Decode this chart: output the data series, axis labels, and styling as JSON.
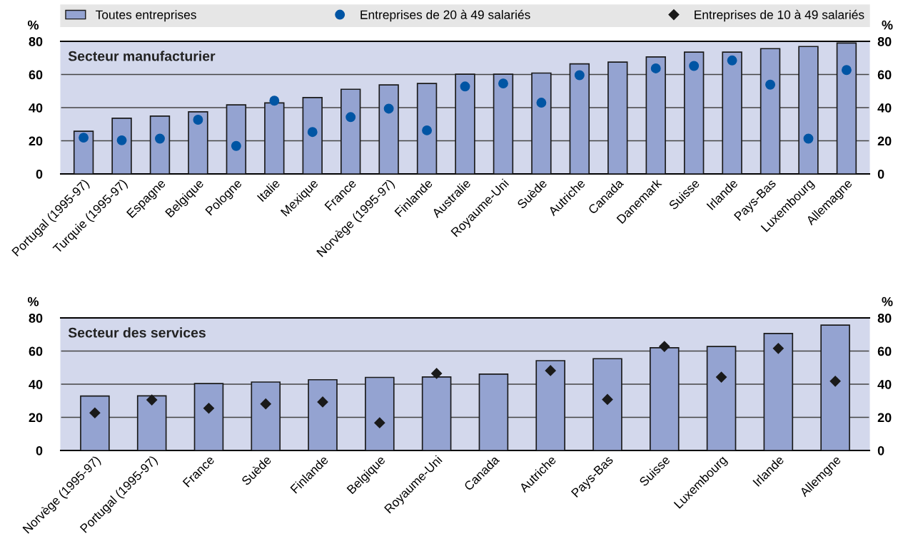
{
  "chart_data": [
    {
      "type": "bar",
      "title": "Secteur manufacturier",
      "annotations": [
        "%",
        "%"
      ],
      "legend": "top",
      "grid": "y",
      "categories": [
        "Portugal (1995-97)",
        "Turquie (1995-97)",
        "Espagne",
        "Belgique",
        "Pologne",
        "Italie",
        "Mexique",
        "France",
        "Norvège (1995-97)",
        "Finlande",
        "Australie",
        "Royaume-Uni",
        "Suède",
        "Autriche",
        "Canada",
        "Danemark",
        "Suisse",
        "Irlande",
        "Pays-Bas",
        "Luxembourg",
        "Allemagne"
      ],
      "series": [
        {
          "name": "Toutes entreprises",
          "color": "#94a3d1",
          "values": [
            25.8,
            33.6,
            34.9,
            37.5,
            41.7,
            42.9,
            46.1,
            51.1,
            53.7,
            54.6,
            60.2,
            60.2,
            60.9,
            66.4,
            67.5,
            70.6,
            73.5,
            73.5,
            75.6,
            76.9,
            79.0
          ]
        },
        {
          "name": "Entreprises de 20 à 49 salariés",
          "type": "scatter",
          "marker": "circle",
          "color": "#0055a4",
          "values": [
            21.9,
            20.3,
            21.3,
            32.7,
            16.9,
            44.2,
            25.3,
            34.3,
            39.4,
            26.3,
            52.8,
            54.6,
            43.0,
            59.6,
            null,
            63.7,
            65.2,
            68.5,
            53.9,
            21.3,
            62.7
          ]
        }
      ],
      "ylim": [
        0,
        80
      ],
      "yticks": [
        0,
        20,
        40,
        60,
        80
      ],
      "y2lim": [
        0,
        80
      ],
      "y2ticks": [
        0,
        20,
        40,
        60,
        80
      ]
    },
    {
      "type": "bar",
      "title": "Secteur des services",
      "annotations": [
        "%",
        "%"
      ],
      "grid": "y",
      "categories": [
        "Norvège (1995-97)",
        "Portugal (1995-97)",
        "France",
        "Suède",
        "Finlande",
        "Belgique",
        "Royaume-Uni",
        "Canada",
        "Autriche",
        "Pays-Bas",
        "Suisse",
        "Luxembourg",
        "Irlande",
        "Allemgne"
      ],
      "series": [
        {
          "name": "Toutes entreprises",
          "color": "#94a3d1",
          "values": [
            32.9,
            33.0,
            40.4,
            41.3,
            42.7,
            44.1,
            44.4,
            46.1,
            54.2,
            55.4,
            62.0,
            62.8,
            70.6,
            75.7
          ]
        },
        {
          "name": "Entreprises de 10 à 49 salariés",
          "type": "scatter",
          "marker": "diamond",
          "color": "#1a1a1a",
          "values": [
            22.7,
            30.5,
            25.5,
            28.1,
            29.3,
            16.7,
            46.5,
            null,
            48.2,
            30.8,
            62.8,
            44.3,
            61.6,
            41.8
          ]
        }
      ],
      "ylim": [
        0,
        80
      ],
      "yticks": [
        0,
        20,
        40,
        60,
        80
      ],
      "y2lim": [
        0,
        80
      ],
      "y2ticks": [
        0,
        20,
        40,
        60,
        80
      ]
    }
  ]
}
